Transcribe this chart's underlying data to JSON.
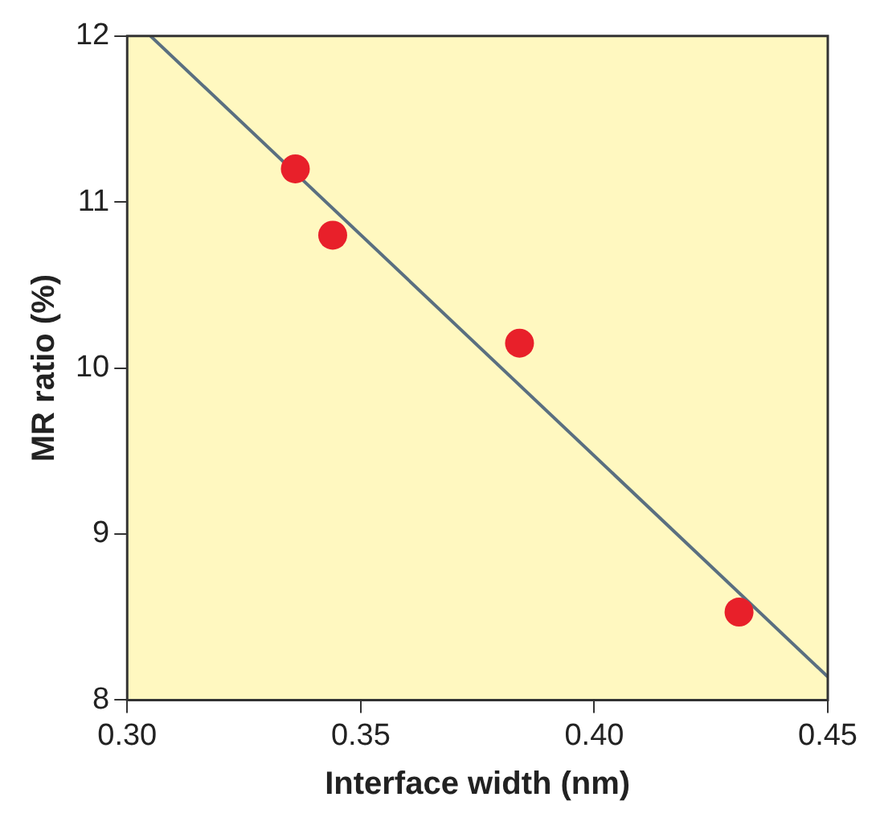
{
  "chart_data": {
    "type": "scatter",
    "xlabel": "Interface width (nm)",
    "ylabel": "MR ratio (%)",
    "xlim": [
      0.3,
      0.45
    ],
    "xticks": [
      {
        "value": 0.3,
        "label": "0.30"
      },
      {
        "value": 0.35,
        "label": "0.35"
      },
      {
        "value": 0.4,
        "label": "0.40"
      },
      {
        "value": 0.45,
        "label": "0.45"
      }
    ],
    "ylim": [
      8,
      12
    ],
    "yticks": [
      8,
      9,
      10,
      11,
      12
    ],
    "grid": false,
    "legend": false,
    "marker": "circle",
    "series": [
      {
        "color": "#e8202a",
        "x": [
          0.336,
          0.344,
          0.384,
          0.431
        ],
        "values": [
          11.2,
          10.8,
          10.15,
          8.53
        ]
      },
      {
        "type": "line",
        "color": "#5a6f80",
        "x": [
          0.305,
          0.45
        ],
        "values": [
          12,
          8.14
        ],
        "marker": "none"
      }
    ]
  }
}
